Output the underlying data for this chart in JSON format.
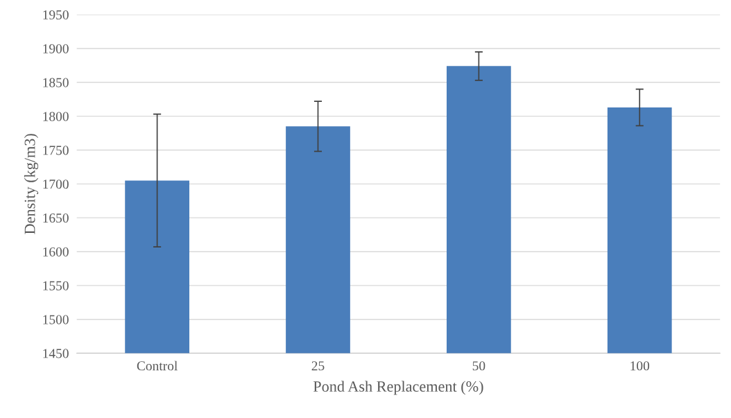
{
  "chart_data": {
    "type": "bar",
    "xlabel": "Pond Ash Replacement (%)",
    "ylabel": "Density (kg/m3)",
    "categories": [
      "Control",
      "25",
      "50",
      "100"
    ],
    "values": [
      1705,
      1785,
      1874,
      1813
    ],
    "errors": [
      98,
      37,
      21,
      27
    ],
    "color": "#4a7ebb",
    "ylim": [
      1450,
      1950
    ],
    "yticks": [
      1450,
      1500,
      1550,
      1600,
      1650,
      1700,
      1750,
      1800,
      1850,
      1900,
      1950
    ],
    "grid": "y"
  }
}
